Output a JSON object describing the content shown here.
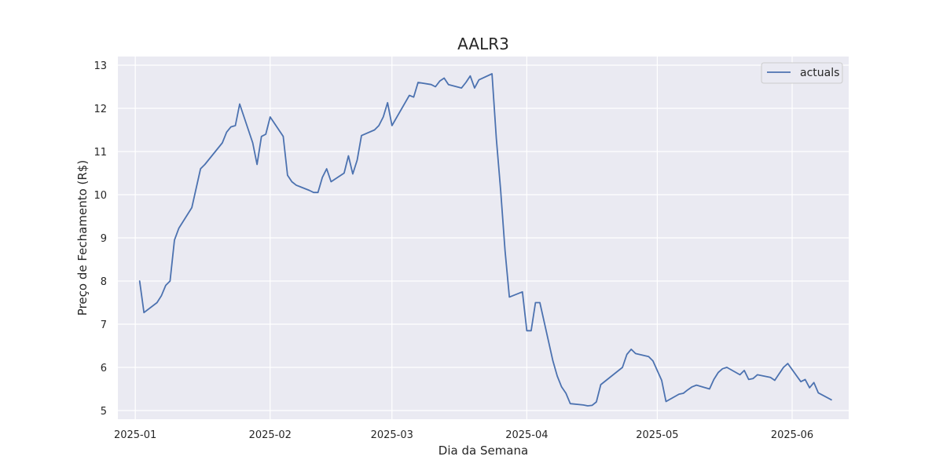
{
  "chart_data": {
    "type": "line",
    "title": "AALR3",
    "xlabel": "Dia da Semana",
    "ylabel": "Preço de Fechamento (R$)",
    "xlim": [
      "2024-12-28",
      "2025-06-14"
    ],
    "ylim": [
      4.8,
      13.2
    ],
    "x_ticks": [
      "2025-01-01",
      "2025-02-01",
      "2025-03-01",
      "2025-04-01",
      "2025-05-01",
      "2025-06-01"
    ],
    "x_tick_labels": [
      "2025-01",
      "2025-02",
      "2025-03",
      "2025-04",
      "2025-05",
      "2025-06"
    ],
    "y_ticks": [
      5,
      6,
      7,
      8,
      9,
      10,
      11,
      12,
      13
    ],
    "grid": true,
    "legend": "top-right",
    "colors": {
      "series": "#4c72b0",
      "background": "#eaeaf2",
      "grid": "#ffffff"
    },
    "series": [
      {
        "name": "actuals",
        "points": [
          [
            "2025-01-02",
            8.0
          ],
          [
            "2025-01-03",
            7.27
          ],
          [
            "2025-01-06",
            7.5
          ],
          [
            "2025-01-07",
            7.66
          ],
          [
            "2025-01-08",
            7.9
          ],
          [
            "2025-01-09",
            8.0
          ],
          [
            "2025-01-10",
            8.95
          ],
          [
            "2025-01-11",
            9.22
          ],
          [
            "2025-01-14",
            9.7
          ],
          [
            "2025-01-16",
            10.6
          ],
          [
            "2025-01-17",
            10.7
          ],
          [
            "2025-01-21",
            11.2
          ],
          [
            "2025-01-22",
            11.45
          ],
          [
            "2025-01-23",
            11.57
          ],
          [
            "2025-01-24",
            11.6
          ],
          [
            "2025-01-25",
            12.1
          ],
          [
            "2025-01-28",
            11.2
          ],
          [
            "2025-01-29",
            10.7
          ],
          [
            "2025-01-30",
            11.35
          ],
          [
            "2025-01-31",
            11.4
          ],
          [
            "2025-02-01",
            11.8
          ],
          [
            "2025-02-04",
            11.35
          ],
          [
            "2025-02-05",
            10.45
          ],
          [
            "2025-02-06",
            10.3
          ],
          [
            "2025-02-07",
            10.22
          ],
          [
            "2025-02-10",
            10.1
          ],
          [
            "2025-02-11",
            10.05
          ],
          [
            "2025-02-12",
            10.05
          ],
          [
            "2025-02-13",
            10.4
          ],
          [
            "2025-02-14",
            10.6
          ],
          [
            "2025-02-15",
            10.3
          ],
          [
            "2025-02-18",
            10.5
          ],
          [
            "2025-02-19",
            10.9
          ],
          [
            "2025-02-20",
            10.48
          ],
          [
            "2025-02-21",
            10.8
          ],
          [
            "2025-02-22",
            11.37
          ],
          [
            "2025-02-25",
            11.5
          ],
          [
            "2025-02-26",
            11.6
          ],
          [
            "2025-02-27",
            11.8
          ],
          [
            "2025-02-28",
            12.13
          ],
          [
            "2025-03-01",
            11.6
          ],
          [
            "2025-03-05",
            12.3
          ],
          [
            "2025-03-06",
            12.26
          ],
          [
            "2025-03-07",
            12.6
          ],
          [
            "2025-03-10",
            12.55
          ],
          [
            "2025-03-11",
            12.5
          ],
          [
            "2025-03-12",
            12.63
          ],
          [
            "2025-03-13",
            12.7
          ],
          [
            "2025-03-14",
            12.55
          ],
          [
            "2025-03-17",
            12.47
          ],
          [
            "2025-03-18",
            12.6
          ],
          [
            "2025-03-19",
            12.75
          ],
          [
            "2025-03-20",
            12.47
          ],
          [
            "2025-03-21",
            12.66
          ],
          [
            "2025-03-24",
            12.8
          ],
          [
            "2025-03-25",
            11.3
          ],
          [
            "2025-03-26",
            10.1
          ],
          [
            "2025-03-27",
            8.7
          ],
          [
            "2025-03-28",
            7.63
          ],
          [
            "2025-03-31",
            7.75
          ],
          [
            "2025-04-01",
            6.85
          ],
          [
            "2025-04-02",
            6.85
          ],
          [
            "2025-04-03",
            7.5
          ],
          [
            "2025-04-04",
            7.5
          ],
          [
            "2025-04-07",
            6.15
          ],
          [
            "2025-04-08",
            5.8
          ],
          [
            "2025-04-09",
            5.55
          ],
          [
            "2025-04-10",
            5.4
          ],
          [
            "2025-04-11",
            5.16
          ],
          [
            "2025-04-14",
            5.13
          ],
          [
            "2025-04-15",
            5.11
          ],
          [
            "2025-04-16",
            5.12
          ],
          [
            "2025-04-17",
            5.2
          ],
          [
            "2025-04-18",
            5.6
          ],
          [
            "2025-04-23",
            6.0
          ],
          [
            "2025-04-24",
            6.3
          ],
          [
            "2025-04-25",
            6.42
          ],
          [
            "2025-04-26",
            6.32
          ],
          [
            "2025-04-29",
            6.25
          ],
          [
            "2025-04-30",
            6.15
          ],
          [
            "2025-05-02",
            5.7
          ],
          [
            "2025-05-03",
            5.21
          ],
          [
            "2025-05-06",
            5.38
          ],
          [
            "2025-05-07",
            5.4
          ],
          [
            "2025-05-08",
            5.48
          ],
          [
            "2025-05-09",
            5.55
          ],
          [
            "2025-05-10",
            5.59
          ],
          [
            "2025-05-13",
            5.5
          ],
          [
            "2025-05-14",
            5.72
          ],
          [
            "2025-05-15",
            5.88
          ],
          [
            "2025-05-16",
            5.97
          ],
          [
            "2025-05-17",
            6.0
          ],
          [
            "2025-05-20",
            5.83
          ],
          [
            "2025-05-21",
            5.93
          ],
          [
            "2025-05-22",
            5.72
          ],
          [
            "2025-05-23",
            5.74
          ],
          [
            "2025-05-24",
            5.83
          ],
          [
            "2025-05-27",
            5.77
          ],
          [
            "2025-05-28",
            5.7
          ],
          [
            "2025-05-29",
            5.85
          ],
          [
            "2025-05-30",
            6.0
          ],
          [
            "2025-05-31",
            6.09
          ],
          [
            "2025-06-03",
            5.67
          ],
          [
            "2025-06-04",
            5.72
          ],
          [
            "2025-06-05",
            5.53
          ],
          [
            "2025-06-06",
            5.65
          ],
          [
            "2025-06-07",
            5.41
          ],
          [
            "2025-06-10",
            5.25
          ]
        ]
      }
    ]
  }
}
